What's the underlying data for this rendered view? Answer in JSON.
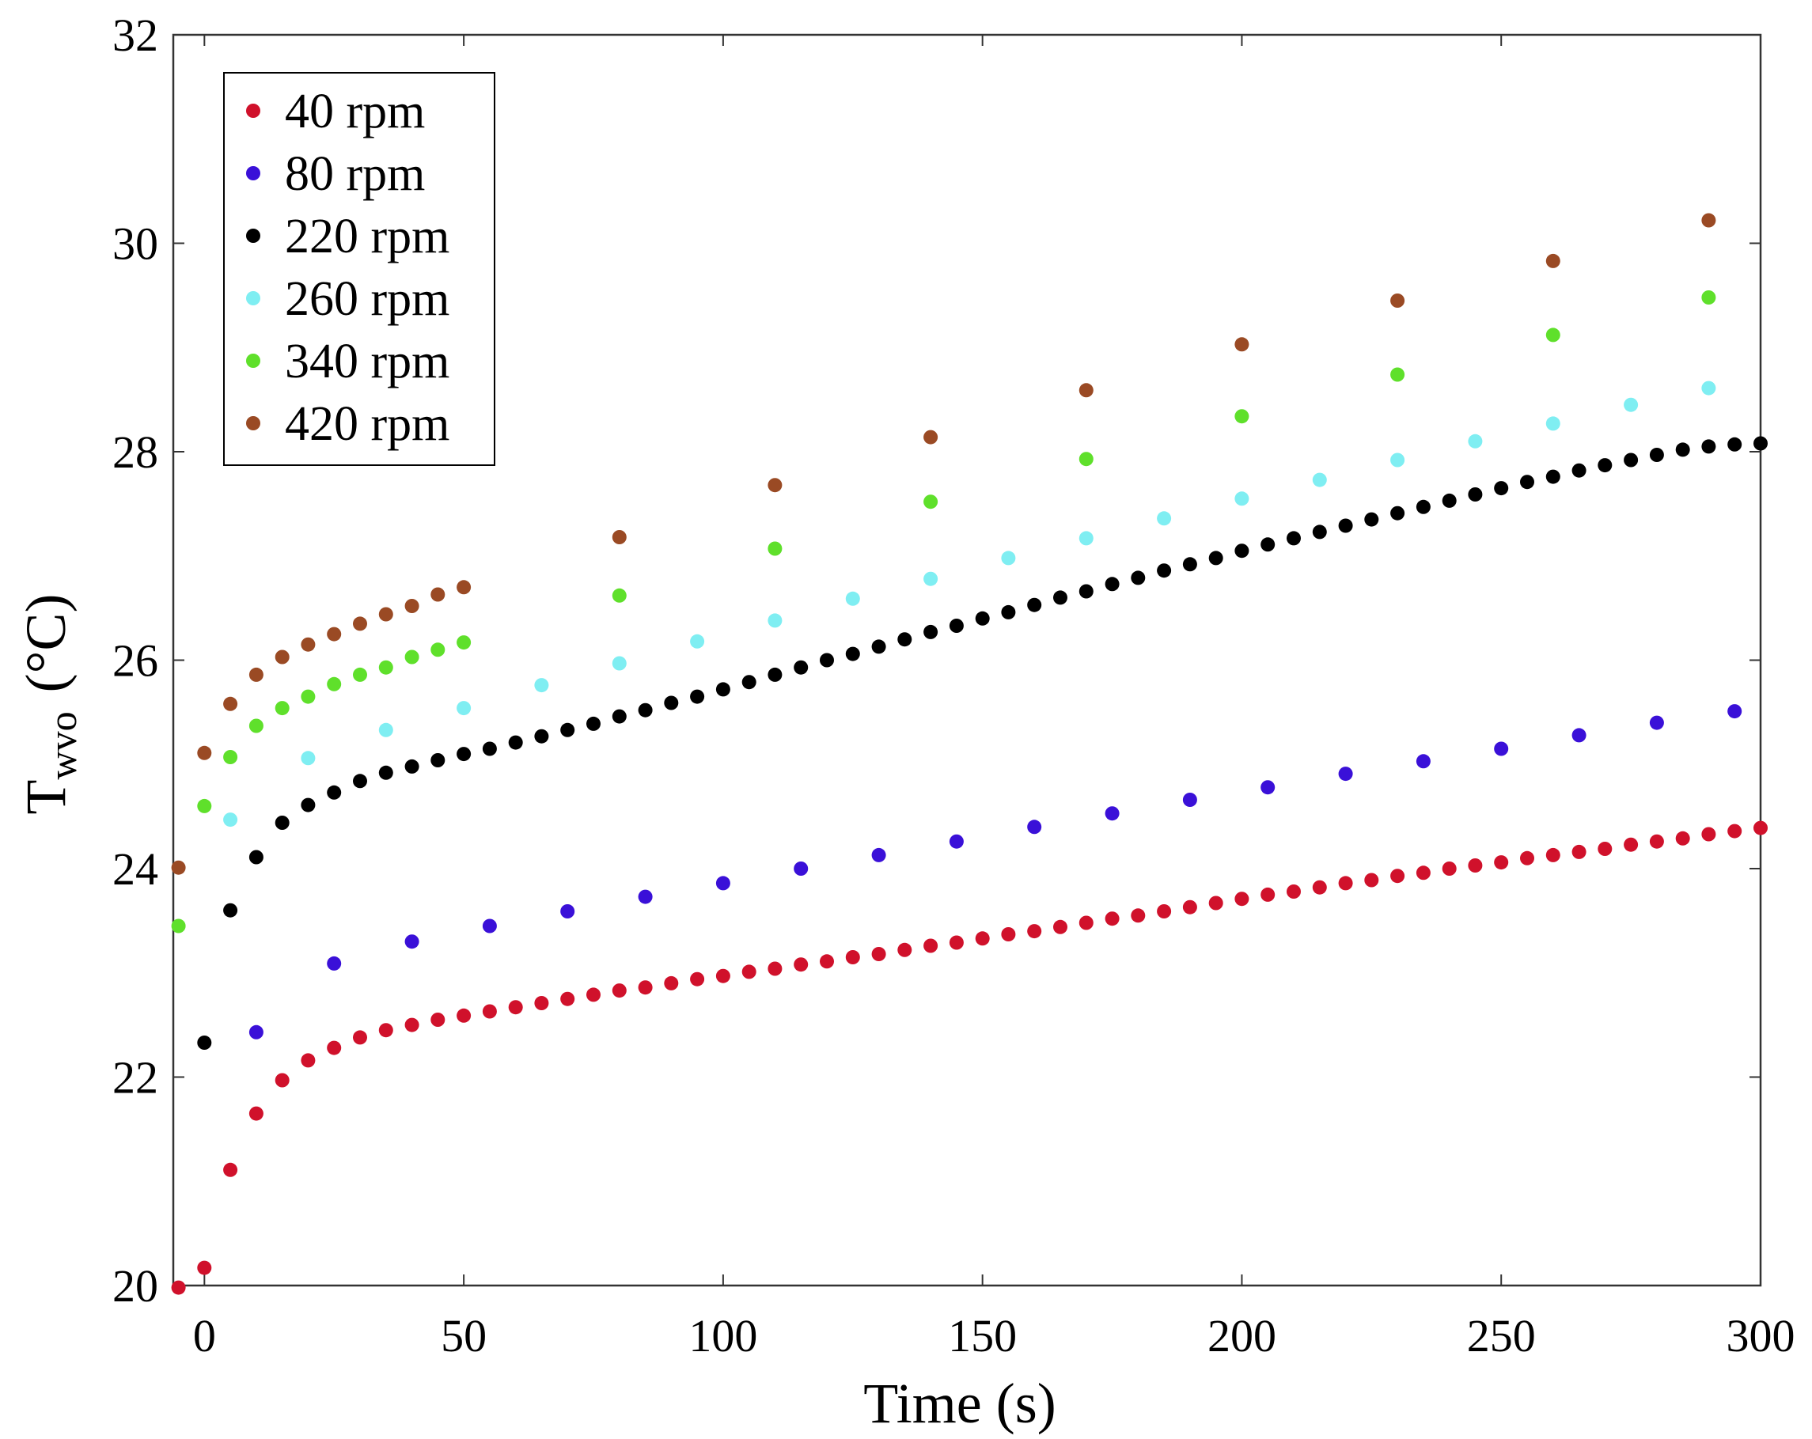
{
  "chart_data": {
    "type": "scatter",
    "title": "",
    "xlabel": "Time (s)",
    "ylabel": {
      "main": "T",
      "subscript": "wvo",
      "unit": "(°C)"
    },
    "xlim": [
      -6,
      300
    ],
    "ylim": [
      20,
      32
    ],
    "xticks": [
      0,
      50,
      100,
      150,
      200,
      250,
      300
    ],
    "yticks": [
      20,
      22,
      24,
      26,
      28,
      30,
      32
    ],
    "grid": false,
    "legend_position": "top-left",
    "series": [
      {
        "name": "40 rpm",
        "color": "#d0112b",
        "x": [
          -5,
          0,
          5,
          10,
          15,
          20,
          25,
          30,
          35,
          40,
          45,
          50,
          55,
          60,
          65,
          70,
          75,
          80,
          85,
          90,
          95,
          100,
          105,
          110,
          115,
          120,
          125,
          130,
          135,
          140,
          145,
          150,
          155,
          160,
          165,
          170,
          175,
          180,
          185,
          190,
          195,
          200,
          205,
          210,
          215,
          220,
          225,
          230,
          235,
          240,
          245,
          250,
          255,
          260,
          265,
          270,
          275,
          280,
          285,
          290,
          295,
          300
        ],
        "y": [
          19.98,
          20.17,
          21.11,
          21.65,
          21.97,
          22.16,
          22.28,
          22.38,
          22.45,
          22.5,
          22.55,
          22.59,
          22.63,
          22.67,
          22.71,
          22.75,
          22.79,
          22.83,
          22.86,
          22.9,
          22.94,
          22.97,
          23.01,
          23.04,
          23.08,
          23.11,
          23.15,
          23.18,
          23.22,
          23.26,
          23.29,
          23.33,
          23.37,
          23.4,
          23.44,
          23.48,
          23.52,
          23.55,
          23.59,
          23.63,
          23.67,
          23.71,
          23.75,
          23.78,
          23.82,
          23.86,
          23.89,
          23.93,
          23.96,
          24.0,
          24.03,
          24.06,
          24.1,
          24.13,
          24.16,
          24.19,
          24.23,
          24.26,
          24.29,
          24.33,
          24.36,
          24.39
        ]
      },
      {
        "name": "80 rpm",
        "color": "#3a10d8",
        "x": [
          10,
          25,
          40,
          55,
          70,
          85,
          100,
          115,
          130,
          145,
          160,
          175,
          190,
          205,
          220,
          235,
          250,
          265,
          280,
          295
        ],
        "y": [
          22.43,
          23.09,
          23.3,
          23.45,
          23.59,
          23.73,
          23.86,
          24.0,
          24.13,
          24.26,
          24.4,
          24.53,
          24.66,
          24.78,
          24.91,
          25.03,
          25.15,
          25.28,
          25.4,
          25.51
        ]
      },
      {
        "name": "220 rpm",
        "color": "#000000",
        "x": [
          0,
          5,
          10,
          15,
          20,
          25,
          30,
          35,
          40,
          45,
          50,
          55,
          60,
          65,
          70,
          75,
          80,
          85,
          90,
          95,
          100,
          105,
          110,
          115,
          120,
          125,
          130,
          135,
          140,
          145,
          150,
          155,
          160,
          165,
          170,
          175,
          180,
          185,
          190,
          195,
          200,
          205,
          210,
          215,
          220,
          225,
          230,
          235,
          240,
          245,
          250,
          255,
          260,
          265,
          270,
          275,
          280,
          285,
          290,
          295,
          300
        ],
        "y": [
          22.33,
          23.6,
          24.11,
          24.44,
          24.61,
          24.73,
          24.84,
          24.92,
          24.98,
          25.04,
          25.1,
          25.15,
          25.21,
          25.27,
          25.33,
          25.39,
          25.46,
          25.52,
          25.59,
          25.65,
          25.72,
          25.79,
          25.86,
          25.93,
          26.0,
          26.06,
          26.13,
          26.2,
          26.27,
          26.33,
          26.4,
          26.46,
          26.53,
          26.6,
          26.66,
          26.73,
          26.79,
          26.86,
          26.92,
          26.98,
          27.05,
          27.11,
          27.17,
          27.23,
          27.29,
          27.35,
          27.41,
          27.47,
          27.53,
          27.59,
          27.65,
          27.71,
          27.76,
          27.82,
          27.87,
          27.92,
          27.97,
          28.02,
          28.05,
          28.07,
          28.08
        ]
      },
      {
        "name": "260 rpm",
        "color": "#7feef2",
        "x": [
          5,
          20,
          35,
          50,
          65,
          80,
          95,
          110,
          125,
          140,
          155,
          170,
          185,
          200,
          215,
          230,
          245,
          260,
          275,
          290
        ],
        "y": [
          24.47,
          25.06,
          25.33,
          25.54,
          25.76,
          25.97,
          26.18,
          26.38,
          26.59,
          26.78,
          26.98,
          27.17,
          27.36,
          27.55,
          27.73,
          27.92,
          28.1,
          28.27,
          28.45,
          28.61
        ]
      },
      {
        "name": "340 rpm",
        "color": "#5fe02b",
        "x": [
          -5,
          0,
          5,
          10,
          15,
          20,
          25,
          30,
          35,
          40,
          45,
          50,
          80,
          110,
          140,
          170,
          200,
          230,
          260,
          290
        ],
        "y": [
          23.45,
          24.6,
          25.07,
          25.37,
          25.54,
          25.65,
          25.77,
          25.86,
          25.93,
          26.03,
          26.1,
          26.17,
          26.62,
          27.07,
          27.52,
          27.93,
          28.34,
          28.74,
          29.12,
          29.48
        ]
      },
      {
        "name": "420 rpm",
        "color": "#9a4a24",
        "x": [
          -5,
          0,
          5,
          10,
          15,
          20,
          25,
          30,
          35,
          40,
          45,
          50,
          80,
          110,
          140,
          170,
          200,
          230,
          260,
          290
        ],
        "y": [
          24.01,
          25.11,
          25.58,
          25.86,
          26.03,
          26.15,
          26.25,
          26.35,
          26.44,
          26.52,
          26.63,
          26.7,
          27.18,
          27.68,
          28.14,
          28.59,
          29.03,
          29.45,
          29.83,
          30.22
        ]
      }
    ]
  }
}
